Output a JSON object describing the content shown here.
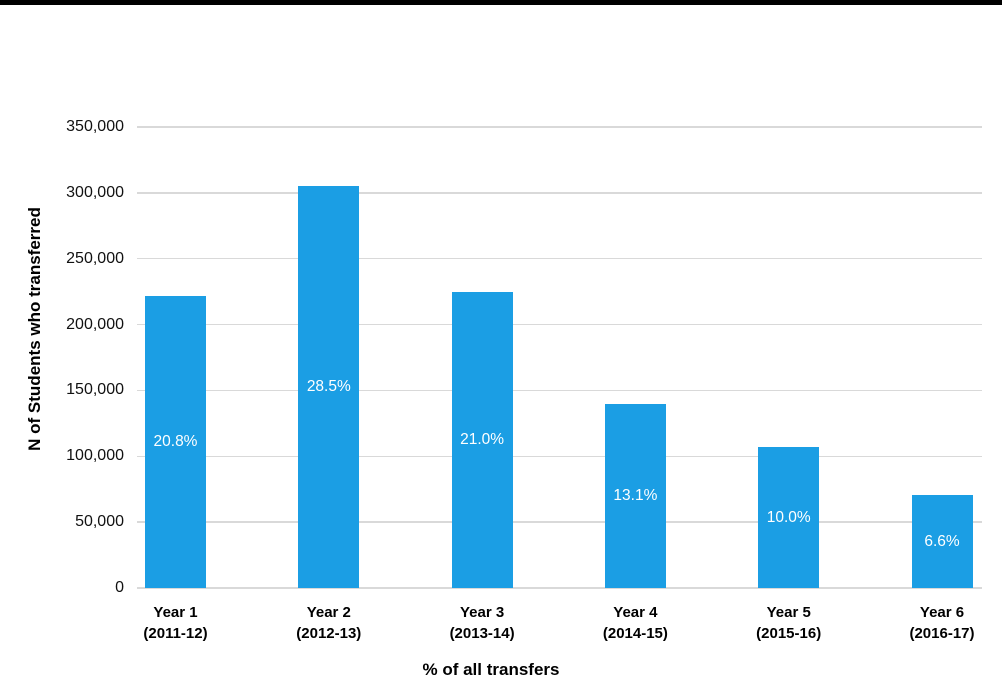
{
  "page": {
    "background_color": "#ffffff",
    "top_bar_color": "#000000"
  },
  "chart_data": {
    "type": "bar",
    "title": "",
    "xlabel": "% of all transfers",
    "ylabel": "N of Students who transferred",
    "categories": [
      {
        "line1": "Year 1",
        "line2": "(2011-12)"
      },
      {
        "line1": "Year 2",
        "line2": "(2012-13)"
      },
      {
        "line1": "Year 3",
        "line2": "(2013-14)"
      },
      {
        "line1": "Year 4",
        "line2": "(2014-15)"
      },
      {
        "line1": "Year 5",
        "line2": "(2015-16)"
      },
      {
        "line1": "Year 6",
        "line2": "(2016-17)"
      }
    ],
    "series": [
      {
        "name": "N of Students who transferred",
        "values": [
          222000,
          305000,
          225000,
          140000,
          107000,
          70500
        ],
        "bar_labels": [
          "20.8%",
          "28.5%",
          "21.0%",
          "13.1%",
          "10.0%",
          "6.6%"
        ]
      }
    ],
    "yticks": [
      {
        "label": "350,000",
        "value": 350000
      },
      {
        "label": "300,000",
        "value": 300000
      },
      {
        "label": "250,000",
        "value": 250000
      },
      {
        "label": "200,000",
        "value": 200000
      },
      {
        "label": "150,000",
        "value": 150000
      },
      {
        "label": "100,000",
        "value": 100000
      },
      {
        "label": "50,000",
        "value": 50000
      },
      {
        "label": "0",
        "value": 0
      }
    ],
    "ylim": [
      0,
      350000
    ],
    "grid": true,
    "legend": false,
    "bar_color": "#1b9ee4",
    "gridline_color": "#d9d9d9",
    "bar_label_color": "#ffffff"
  }
}
